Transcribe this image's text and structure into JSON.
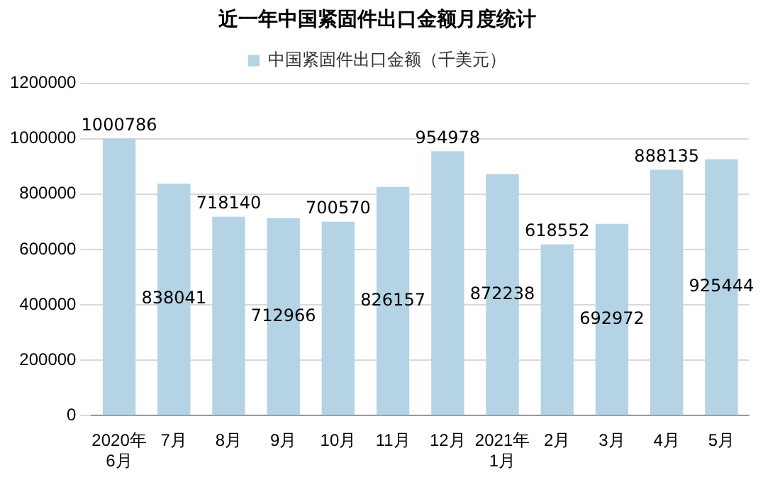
{
  "chart_data": {
    "type": "bar",
    "title": "近一年中国紧固件出口金额月度统计",
    "categories": [
      "2020年\n6月",
      "7月",
      "8月",
      "9月",
      "10月",
      "11月",
      "12月",
      "2021年\n1月",
      "2月",
      "3月",
      "4月",
      "5月"
    ],
    "series": [
      {
        "name": "中国紧固件出口金额（千美元）",
        "color": "#b4d3e5",
        "values": [
          1000786,
          838041,
          718140,
          712966,
          700570,
          826157,
          954978,
          872238,
          618552,
          692972,
          888135,
          925444
        ]
      }
    ],
    "ylim": [
      0,
      1200000
    ],
    "yticks": [
      0,
      200000,
      400000,
      600000,
      800000,
      1000000,
      1200000
    ],
    "grid": "y",
    "legend": "top",
    "data_labels": true
  }
}
